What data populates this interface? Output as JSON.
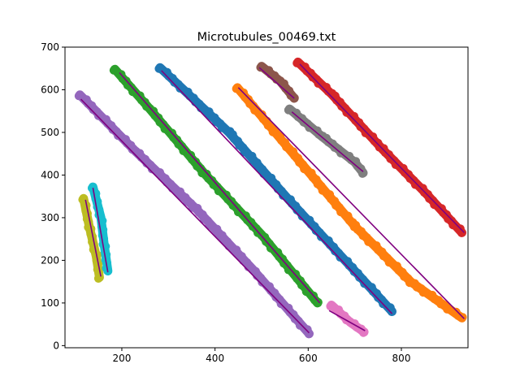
{
  "chart_data": {
    "type": "scatter",
    "title": "Microtubules_00469.txt",
    "xlabel": "",
    "ylabel": "",
    "xlim": [
      78,
      943
    ],
    "ylim": [
      -5,
      700
    ],
    "xticks": [
      200,
      400,
      600,
      800
    ],
    "yticks": [
      0,
      100,
      200,
      300,
      400,
      500,
      600,
      700
    ],
    "grid": false,
    "legend": "none",
    "fit_line_color": "#800080",
    "series": [
      {
        "color": "#1f77b4",
        "centerline": [
          [
            282,
            652
          ],
          [
            430,
            500
          ],
          [
            560,
            340
          ],
          [
            700,
            175
          ],
          [
            780,
            80
          ]
        ],
        "fit": [
          [
            285,
            645
          ],
          [
            780,
            75
          ]
        ]
      },
      {
        "color": "#ff7f0e",
        "centerline": [
          [
            448,
            605
          ],
          [
            560,
            460
          ],
          [
            700,
            280
          ],
          [
            820,
            150
          ],
          [
            930,
            65
          ]
        ],
        "fit": [
          [
            450,
            605
          ],
          [
            935,
            63
          ]
        ]
      },
      {
        "color": "#2ca02c",
        "centerline": [
          [
            185,
            648
          ],
          [
            260,
            555
          ],
          [
            380,
            400
          ],
          [
            500,
            260
          ],
          [
            620,
            100
          ]
        ],
        "fit": [
          [
            195,
            640
          ],
          [
            625,
            100
          ]
        ]
      },
      {
        "color": "#d62728",
        "centerline": [
          [
            578,
            665
          ],
          [
            650,
            590
          ],
          [
            760,
            460
          ],
          [
            850,
            360
          ],
          [
            930,
            265
          ]
        ],
        "fit": [
          [
            582,
            660
          ],
          [
            935,
            265
          ]
        ]
      },
      {
        "color": "#9467bd",
        "centerline": [
          [
            110,
            588
          ],
          [
            230,
            455
          ],
          [
            360,
            320
          ],
          [
            480,
            180
          ],
          [
            602,
            28
          ]
        ],
        "fit": [
          [
            112,
            578
          ],
          [
            602,
            30
          ]
        ]
      },
      {
        "color": "#8c564b",
        "centerline": [
          [
            500,
            655
          ],
          [
            540,
            620
          ],
          [
            570,
            580
          ]
        ],
        "fit": [
          [
            495,
            652
          ],
          [
            570,
            580
          ]
        ]
      },
      {
        "color": "#e377c2",
        "centerline": [
          [
            650,
            95
          ],
          [
            690,
            55
          ],
          [
            720,
            32
          ]
        ],
        "fit": [
          [
            645,
            82
          ],
          [
            722,
            35
          ]
        ]
      },
      {
        "color": "#7f7f7f",
        "centerline": [
          [
            560,
            555
          ],
          [
            630,
            490
          ],
          [
            700,
            430
          ],
          [
            718,
            405
          ]
        ],
        "fit": [
          [
            565,
            548
          ],
          [
            718,
            408
          ]
        ]
      },
      {
        "color": "#bcbd22",
        "centerline": [
          [
            118,
            345
          ],
          [
            130,
            280
          ],
          [
            145,
            210
          ],
          [
            152,
            160
          ]
        ],
        "fit": [
          [
            122,
            342
          ],
          [
            155,
            162
          ]
        ]
      },
      {
        "color": "#17becf",
        "centerline": [
          [
            138,
            372
          ],
          [
            155,
            300
          ],
          [
            163,
            230
          ],
          [
            170,
            175
          ]
        ],
        "fit": [
          [
            138,
            370
          ],
          [
            170,
            172
          ]
        ]
      }
    ]
  }
}
